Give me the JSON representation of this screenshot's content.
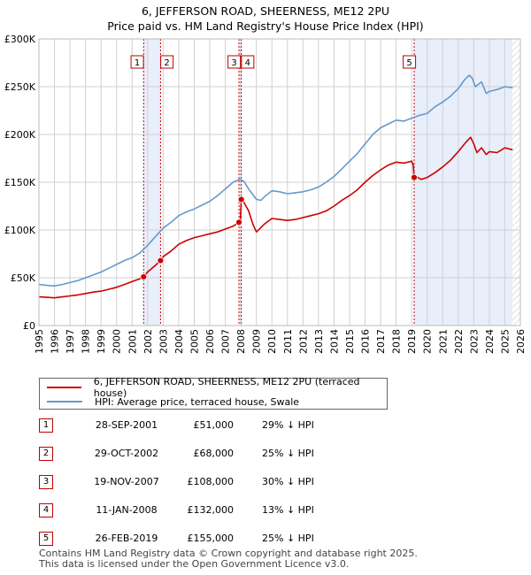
{
  "chart_data": {
    "type": "line",
    "title": "6, JEFFERSON ROAD, SHEERNESS, ME12 2PU",
    "subtitle": "Price paid vs. HM Land Registry's House Price Index (HPI)",
    "xlabel": "",
    "ylabel": "",
    "xlim": [
      1995,
      2026
    ],
    "ylim": [
      0,
      300000
    ],
    "x_ticks": [
      "1995",
      "1996",
      "1997",
      "1998",
      "1999",
      "2000",
      "2001",
      "2002",
      "2003",
      "2004",
      "2005",
      "2006",
      "2007",
      "2008",
      "2009",
      "2010",
      "2011",
      "2012",
      "2013",
      "2014",
      "2015",
      "2016",
      "2017",
      "2018",
      "2019",
      "2020",
      "2021",
      "2022",
      "2023",
      "2024",
      "2025",
      "2026"
    ],
    "y_ticks": [
      {
        "value": 0,
        "label": "£0"
      },
      {
        "value": 50000,
        "label": "£50K"
      },
      {
        "value": 100000,
        "label": "£100K"
      },
      {
        "value": 150000,
        "label": "£150K"
      },
      {
        "value": 200000,
        "label": "£200K"
      },
      {
        "value": 250000,
        "label": "£250K"
      },
      {
        "value": 300000,
        "label": "£300K"
      }
    ],
    "grid": true,
    "series": [
      {
        "name": "6, JEFFERSON ROAD, SHEERNESS, ME12 2PU (terraced house)",
        "color": "#cc0000",
        "x": [
          1995.0,
          1995.5,
          1996.0,
          1996.5,
          1997.0,
          1997.5,
          1998.0,
          1998.5,
          1999.0,
          1999.5,
          2000.0,
          2000.5,
          2001.0,
          2001.5,
          2001.74,
          2002.0,
          2002.5,
          2002.83,
          2003.0,
          2003.5,
          2004.0,
          2004.5,
          2005.0,
          2005.5,
          2006.0,
          2006.5,
          2007.0,
          2007.5,
          2007.88,
          2007.95,
          2008.03,
          2008.2,
          2008.5,
          2008.8,
          2009.0,
          2009.2,
          2009.5,
          2010.0,
          2010.5,
          2011.0,
          2011.5,
          2012.0,
          2012.5,
          2013.0,
          2013.5,
          2014.0,
          2014.5,
          2015.0,
          2015.5,
          2016.0,
          2016.5,
          2017.0,
          2017.5,
          2018.0,
          2018.5,
          2019.0,
          2019.1,
          2019.16,
          2019.3,
          2019.6,
          2020.0,
          2020.5,
          2021.0,
          2021.5,
          2022.0,
          2022.5,
          2022.8,
          2023.0,
          2023.2,
          2023.5,
          2023.8,
          2024.0,
          2024.5,
          2025.0,
          2025.5
        ],
        "values": [
          30000,
          29500,
          29000,
          30000,
          31000,
          32000,
          33500,
          35000,
          36000,
          38000,
          40000,
          43000,
          46000,
          49000,
          51000,
          56000,
          63000,
          68000,
          72000,
          78000,
          85000,
          89000,
          92000,
          94000,
          96000,
          98000,
          101000,
          104000,
          108000,
          106000,
          132000,
          129000,
          120000,
          105000,
          98000,
          101000,
          106000,
          112000,
          111000,
          110000,
          111000,
          113000,
          115000,
          117000,
          120000,
          125000,
          131000,
          136000,
          142000,
          150000,
          157000,
          163000,
          168000,
          171000,
          170000,
          172000,
          168000,
          155000,
          156000,
          153000,
          155000,
          160000,
          166000,
          173000,
          182000,
          192000,
          197000,
          190000,
          181000,
          186000,
          179000,
          182000,
          181000,
          186000,
          184000
        ]
      },
      {
        "name": "HPI: Average price, terraced house, Swale",
        "color": "#6699cc",
        "x": [
          1995.0,
          1995.5,
          1996.0,
          1996.5,
          1997.0,
          1997.5,
          1998.0,
          1998.5,
          1999.0,
          1999.5,
          2000.0,
          2000.5,
          2001.0,
          2001.5,
          2002.0,
          2002.5,
          2003.0,
          2003.5,
          2004.0,
          2004.5,
          2005.0,
          2005.5,
          2006.0,
          2006.5,
          2007.0,
          2007.5,
          2007.9,
          2008.2,
          2008.5,
          2009.0,
          2009.3,
          2009.6,
          2010.0,
          2010.5,
          2011.0,
          2011.5,
          2012.0,
          2012.5,
          2013.0,
          2013.5,
          2014.0,
          2014.5,
          2015.0,
          2015.5,
          2016.0,
          2016.5,
          2017.0,
          2017.5,
          2018.0,
          2018.5,
          2019.0,
          2019.5,
          2020.0,
          2020.5,
          2021.0,
          2021.5,
          2022.0,
          2022.4,
          2022.7,
          2022.9,
          2023.1,
          2023.5,
          2023.8,
          2024.0,
          2024.5,
          2025.0,
          2025.5
        ],
        "values": [
          43000,
          42000,
          41500,
          43000,
          45000,
          47000,
          50000,
          53000,
          56000,
          60000,
          64000,
          68000,
          71000,
          76000,
          84000,
          93000,
          102000,
          108000,
          115000,
          119000,
          122000,
          126000,
          130000,
          136000,
          143000,
          150000,
          153000,
          151000,
          143000,
          132000,
          131000,
          136000,
          141000,
          140000,
          138000,
          139000,
          140000,
          142000,
          145000,
          150000,
          156000,
          164000,
          172000,
          180000,
          190000,
          200000,
          207000,
          211000,
          215000,
          214000,
          217000,
          220000,
          222000,
          229000,
          234000,
          240000,
          248000,
          257000,
          262000,
          259000,
          250000,
          255000,
          243000,
          245000,
          247000,
          250000,
          249000
        ]
      }
    ],
    "sales": [
      {
        "id": "1",
        "date": "28-SEP-2001",
        "x": 2001.74,
        "price": 51000,
        "price_label": "£51,000",
        "hpi": "29% ↓ HPI"
      },
      {
        "id": "2",
        "date": "29-OCT-2002",
        "x": 2002.83,
        "price": 68000,
        "price_label": "£68,000",
        "hpi": "25% ↓ HPI"
      },
      {
        "id": "3",
        "date": "19-NOV-2007",
        "x": 2007.88,
        "price": 108000,
        "price_label": "£108,000",
        "hpi": "30% ↓ HPI"
      },
      {
        "id": "4",
        "date": "11-JAN-2008",
        "x": 2008.03,
        "price": 132000,
        "price_label": "£132,000",
        "hpi": "13% ↓ HPI"
      },
      {
        "id": "5",
        "date": "26-FEB-2019",
        "x": 2019.16,
        "price": 155000,
        "price_label": "£155,000",
        "hpi": "25% ↓ HPI"
      }
    ],
    "shaded_periods": [
      [
        2001.74,
        2002.83
      ],
      [
        2007.88,
        2008.03
      ],
      [
        2019.16,
        2025.5
      ]
    ],
    "hatch_from": 2025.5
  },
  "legend": {
    "property_label": "6, JEFFERSON ROAD, SHEERNESS, ME12 2PU (terraced house)",
    "hpi_label": "HPI: Average price, terraced house, Swale"
  },
  "footer": {
    "line1": "Contains HM Land Registry data © Crown copyright and database right 2025.",
    "line2": "This data is licensed under the Open Government Licence v3.0."
  }
}
